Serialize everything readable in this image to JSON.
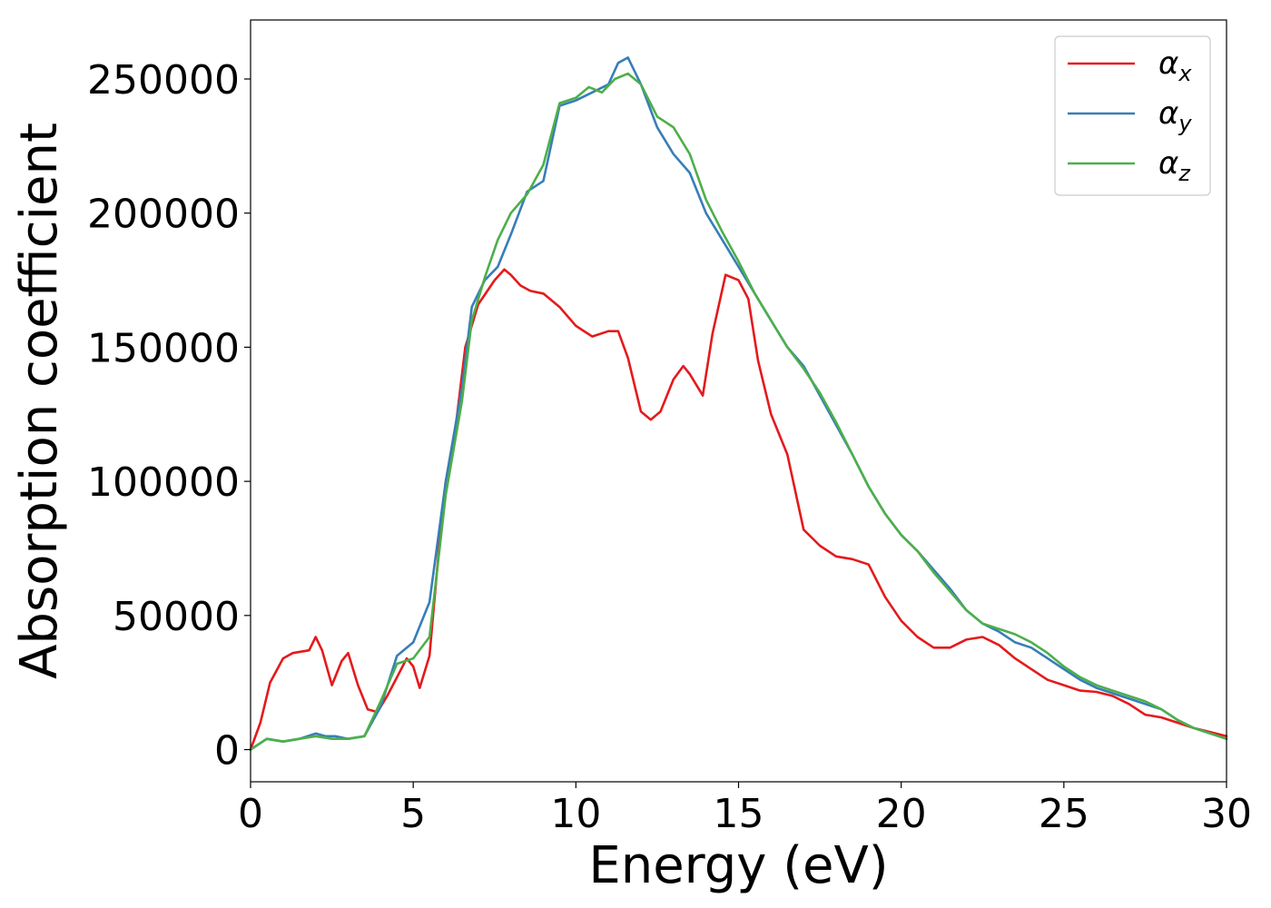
{
  "colors": {
    "alpha_x": "#e41a1c",
    "alpha_y": "#377eb8",
    "alpha_z": "#4daf4a"
  },
  "chart_data": {
    "type": "line",
    "xlabel": "Energy (eV)",
    "ylabel": "Absorption coefficient",
    "xlim": [
      0,
      30
    ],
    "ylim": [
      -12000,
      272000
    ],
    "xticks": [
      0,
      5,
      10,
      15,
      20,
      25,
      30
    ],
    "xtick_labels": [
      "0",
      "5",
      "10",
      "15",
      "20",
      "25",
      "30"
    ],
    "yticks": [
      0,
      50000,
      100000,
      150000,
      200000,
      250000
    ],
    "ytick_labels": [
      "0",
      "50000",
      "100000",
      "150000",
      "200000",
      "250000"
    ],
    "grid": false,
    "legend": {
      "position": "top-right"
    },
    "series": [
      {
        "name": "α_x",
        "label_main": "α",
        "label_sub": "x",
        "color": "#e41a1c",
        "x": [
          0,
          0.3,
          0.6,
          1.0,
          1.3,
          1.8,
          2.0,
          2.2,
          2.5,
          2.8,
          3.0,
          3.3,
          3.6,
          3.9,
          4.2,
          4.5,
          4.8,
          5.0,
          5.2,
          5.5,
          5.8,
          6.0,
          6.3,
          6.6,
          7.0,
          7.5,
          7.8,
          8.0,
          8.3,
          8.6,
          9.0,
          9.5,
          10.0,
          10.5,
          11.0,
          11.3,
          11.6,
          12.0,
          12.3,
          12.6,
          13.0,
          13.3,
          13.5,
          13.9,
          14.2,
          14.6,
          15.0,
          15.3,
          15.6,
          16.0,
          16.5,
          17.0,
          17.5,
          18.0,
          18.5,
          19.0,
          19.5,
          20.0,
          20.5,
          21.0,
          21.5,
          22.0,
          22.5,
          23.0,
          23.5,
          24.0,
          24.5,
          25.0,
          25.5,
          26.0,
          26.5,
          27.0,
          27.5,
          28.0,
          28.5,
          29.0,
          29.5,
          30.0
        ],
        "y": [
          0,
          10000,
          25000,
          34000,
          36000,
          37000,
          42000,
          37000,
          24000,
          33000,
          36000,
          24000,
          15000,
          14000,
          20000,
          27000,
          34000,
          31000,
          23000,
          35000,
          76000,
          100000,
          120000,
          150000,
          166000,
          175000,
          179000,
          177000,
          173000,
          171000,
          170000,
          165000,
          158000,
          154000,
          156000,
          156000,
          146000,
          126000,
          123000,
          126000,
          138000,
          143000,
          140000,
          132000,
          155000,
          177000,
          175000,
          168000,
          145000,
          125000,
          110000,
          82000,
          76000,
          72000,
          71000,
          69000,
          57000,
          48000,
          42000,
          38000,
          38000,
          41000,
          42000,
          39000,
          34000,
          30000,
          26000,
          24000,
          22000,
          21500,
          20000,
          17000,
          13000,
          12000,
          10000,
          8000,
          6500,
          5000
        ]
      },
      {
        "name": "α_y",
        "label_main": "α",
        "label_sub": "y",
        "color": "#377eb8",
        "x": [
          0,
          0.5,
          1.0,
          1.5,
          2.0,
          2.3,
          2.6,
          3.0,
          3.5,
          4.0,
          4.5,
          5.0,
          5.5,
          6.0,
          6.5,
          6.8,
          7.2,
          7.6,
          8.0,
          8.5,
          9.0,
          9.5,
          10.0,
          10.5,
          11.0,
          11.3,
          11.6,
          12.0,
          12.5,
          13.0,
          13.5,
          14.0,
          14.5,
          15.0,
          15.5,
          16.0,
          16.5,
          17.0,
          17.5,
          18.0,
          18.5,
          19.0,
          19.5,
          20.0,
          20.5,
          21.0,
          21.5,
          22.0,
          22.5,
          23.0,
          23.5,
          24.0,
          24.5,
          25.0,
          25.5,
          26.0,
          26.5,
          27.0,
          27.5,
          28.0,
          28.5,
          29.0,
          29.5,
          30.0
        ],
        "y": [
          0,
          4000,
          3000,
          4000,
          6000,
          5000,
          5000,
          4000,
          5000,
          16000,
          35000,
          40000,
          55000,
          100000,
          135000,
          165000,
          175000,
          180000,
          192000,
          208000,
          212000,
          240000,
          242000,
          245000,
          248000,
          256000,
          258000,
          248000,
          232000,
          222000,
          215000,
          200000,
          190000,
          180000,
          170000,
          160000,
          150000,
          143000,
          132000,
          121000,
          110000,
          98000,
          88000,
          80000,
          74000,
          67000,
          60000,
          52000,
          47000,
          44000,
          40000,
          38000,
          34000,
          30000,
          26000,
          23000,
          21000,
          19000,
          17000,
          15000,
          11000,
          8000,
          6000,
          4000
        ]
      },
      {
        "name": "α_z",
        "label_main": "α",
        "label_sub": "z",
        "color": "#4daf4a",
        "x": [
          0,
          0.5,
          1.0,
          1.5,
          2.0,
          2.5,
          3.0,
          3.5,
          4.0,
          4.5,
          5.0,
          5.5,
          6.0,
          6.5,
          6.8,
          7.2,
          7.6,
          8.0,
          8.5,
          9.0,
          9.5,
          10.0,
          10.4,
          10.8,
          11.2,
          11.6,
          12.0,
          12.5,
          13.0,
          13.5,
          14.0,
          14.5,
          15.0,
          15.5,
          16.0,
          16.5,
          17.0,
          17.5,
          18.0,
          18.5,
          19.0,
          19.5,
          20.0,
          20.5,
          21.0,
          21.5,
          22.0,
          22.5,
          23.0,
          23.5,
          24.0,
          24.5,
          25.0,
          25.5,
          26.0,
          26.5,
          27.0,
          27.5,
          28.0,
          28.5,
          29.0,
          29.5,
          30.0
        ],
        "y": [
          0,
          4000,
          3000,
          4000,
          5000,
          4000,
          4000,
          5000,
          18000,
          32000,
          34000,
          42000,
          95000,
          130000,
          160000,
          176000,
          190000,
          200000,
          207000,
          218000,
          241000,
          243000,
          247000,
          245000,
          250000,
          252000,
          248000,
          236000,
          232000,
          222000,
          205000,
          193000,
          182000,
          170000,
          160000,
          150000,
          142000,
          133000,
          122000,
          110000,
          98000,
          88000,
          80000,
          74000,
          66000,
          59000,
          52000,
          47000,
          45000,
          43000,
          40000,
          36000,
          31000,
          27000,
          24000,
          22000,
          20000,
          18000,
          15000,
          11000,
          8000,
          6000,
          4000
        ]
      }
    ]
  }
}
